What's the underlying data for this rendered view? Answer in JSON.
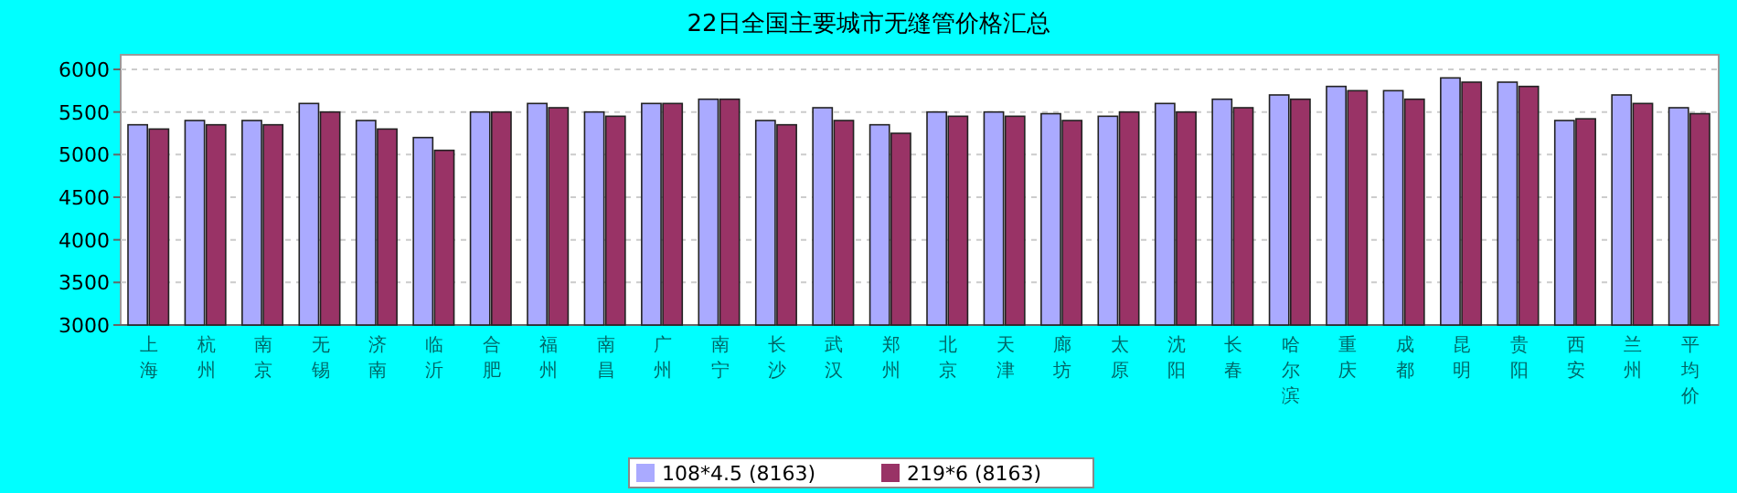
{
  "chart_data": {
    "type": "bar",
    "title": "22日全国主要城市无缝管价格汇总",
    "categories": [
      "上海",
      "杭州",
      "南京",
      "无锡",
      "济南",
      "临沂",
      "合肥",
      "福州",
      "南昌",
      "广州",
      "南宁",
      "长沙",
      "武汉",
      "郑州",
      "北京",
      "天津",
      "廊坊",
      "太原",
      "沈阳",
      "长春",
      "哈尔滨",
      "重庆",
      "成都",
      "昆明",
      "贵阳",
      "西安",
      "兰州",
      "平均价"
    ],
    "series": [
      {
        "name": "108*4.5 (8163)",
        "color": "#aaaaff",
        "values": [
          5350,
          5400,
          5400,
          5600,
          5400,
          5200,
          5500,
          5600,
          5500,
          5600,
          5650,
          5400,
          5550,
          5350,
          5500,
          5500,
          5480,
          5450,
          5600,
          5650,
          5700,
          5800,
          5750,
          5900,
          5850,
          5400,
          5700,
          5550
        ]
      },
      {
        "name": "219*6 (8163)",
        "color": "#993366",
        "values": [
          5300,
          5350,
          5350,
          5500,
          5300,
          5050,
          5500,
          5550,
          5450,
          5600,
          5650,
          5350,
          5400,
          5250,
          5450,
          5450,
          5400,
          5500,
          5500,
          5550,
          5650,
          5750,
          5650,
          5850,
          5800,
          5420,
          5600,
          5480
        ]
      }
    ],
    "ylim": [
      3000,
      6000
    ],
    "yticks": [
      3000,
      3500,
      4000,
      4500,
      5000,
      5500,
      6000
    ],
    "grid": "y",
    "legend": "bottom"
  }
}
